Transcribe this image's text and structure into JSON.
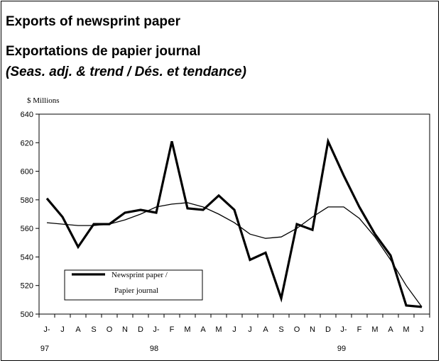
{
  "chart_data": {
    "type": "line",
    "title": "Exports of newsprint paper",
    "title_fr": "Exportations de papier journal",
    "subtitle": "(Seas. adj. & trend / Dés. et tendance)",
    "ylabel": "$ Millions",
    "ylim": [
      500,
      640
    ],
    "yticks": [
      500,
      520,
      540,
      560,
      580,
      600,
      620,
      640
    ],
    "month_labels": [
      "J-",
      "J",
      "A",
      "S",
      "O",
      "N",
      "D",
      "J-",
      "F",
      "M",
      "A",
      "M",
      "J",
      "J",
      "A",
      "S",
      "O",
      "N",
      "D",
      "J-",
      "F",
      "M",
      "A",
      "M",
      "J"
    ],
    "year_labels": [
      {
        "index": 0,
        "label": "97"
      },
      {
        "index": 7,
        "label": "98"
      },
      {
        "index": 19,
        "label": "99"
      }
    ],
    "categories": [
      "Jun-97",
      "Jul-97",
      "Aug-97",
      "Sep-97",
      "Oct-97",
      "Nov-97",
      "Dec-97",
      "Jan-98",
      "Feb-98",
      "Mar-98",
      "Apr-98",
      "May-98",
      "Jun-98",
      "Jul-98",
      "Aug-98",
      "Sep-98",
      "Oct-98",
      "Nov-98",
      "Dec-98",
      "Jan-99",
      "Feb-99",
      "Mar-99",
      "Apr-99",
      "May-99",
      "Jun-99"
    ],
    "series": [
      {
        "name": "Newsprint paper / Papier journal",
        "legend_lines": [
          "Newsprint paper /",
          "Papier journal"
        ],
        "style": "thick",
        "values": [
          581,
          568,
          547,
          563,
          563,
          571,
          573,
          571,
          621,
          574,
          573,
          583,
          573,
          538,
          543,
          511,
          563,
          559,
          621,
          597,
          575,
          556,
          541,
          506,
          505
        ]
      },
      {
        "style": "thin",
        "values": [
          564,
          563,
          562,
          562,
          563,
          566,
          570,
          575,
          577,
          578,
          575,
          570,
          564,
          556,
          553,
          554,
          560,
          568,
          575,
          575,
          567,
          554,
          538,
          520,
          505
        ]
      }
    ],
    "legend_position": "bottom-left",
    "grid": false
  }
}
